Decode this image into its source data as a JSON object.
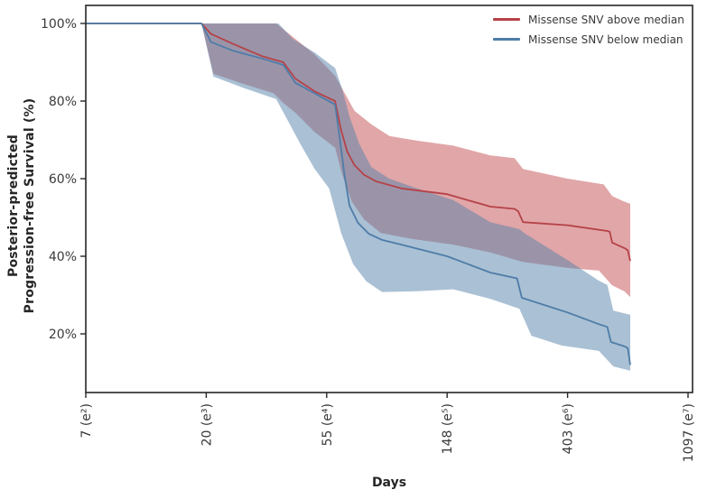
{
  "figure": {
    "y_axis_title_line1": "Posterior-predicted",
    "y_axis_title_line2": "Progression-free Survival (%)",
    "x_axis_title": "Days",
    "legend": [
      {
        "label": "Missense SNV above median",
        "color": "#b54248"
      },
      {
        "label": "Missense SNV below median",
        "color": "#4e7ca8"
      }
    ]
  },
  "chart_data": {
    "type": "line",
    "subtype": "survival-curves-with-credible-bands",
    "title": "",
    "xlabel": "Days",
    "ylabel": "Posterior-predicted Progression-free Survival (%)",
    "x_scale": "natural-log",
    "x_domain_ln": [
      2.0,
      7.04
    ],
    "y_domain_pct": [
      4.9,
      104.6
    ],
    "grid": "off",
    "legend_position": "upper right, no frame",
    "x_ticks": [
      {
        "ln": 2,
        "days": 7,
        "label": "7 (e²)"
      },
      {
        "ln": 3,
        "days": 20,
        "label": "20 (e³)"
      },
      {
        "ln": 4,
        "days": 55,
        "label": "55 (e⁴)"
      },
      {
        "ln": 5,
        "days": 148,
        "label": "148 (e⁵)"
      },
      {
        "ln": 6,
        "days": 403,
        "label": "403 (e⁶)"
      },
      {
        "ln": 7,
        "days": 1097,
        "label": "1097 (e⁷)"
      }
    ],
    "y_ticks": [
      {
        "value": 100,
        "label": "100%"
      },
      {
        "value": 80,
        "label": "80%"
      },
      {
        "value": 60,
        "label": "60%"
      },
      {
        "value": 40,
        "label": "40%"
      },
      {
        "value": 20,
        "label": "20%"
      }
    ],
    "series": [
      {
        "name": "Missense SNV above median",
        "line_color": "#b54248",
        "band_color": "#c44e52",
        "band_opacity": 0.5,
        "points_format": "[ln_days, survival_pct]",
        "line": [
          [
            2.0,
            100
          ],
          [
            2.96,
            100
          ],
          [
            3.04,
            97.3
          ],
          [
            3.22,
            94.8
          ],
          [
            3.46,
            91.6
          ],
          [
            3.64,
            90.0
          ],
          [
            3.74,
            85.8
          ],
          [
            3.9,
            82.5
          ],
          [
            4.07,
            80.0
          ],
          [
            4.12,
            72.5
          ],
          [
            4.17,
            67.0
          ],
          [
            4.23,
            63.5
          ],
          [
            4.31,
            61.0
          ],
          [
            4.41,
            59.3
          ],
          [
            4.62,
            57.5
          ],
          [
            5.0,
            56.0
          ],
          [
            5.36,
            52.8
          ],
          [
            5.56,
            52.2
          ],
          [
            5.59,
            51.6
          ],
          [
            5.63,
            48.8
          ],
          [
            6.0,
            48.0
          ],
          [
            6.33,
            46.5
          ],
          [
            6.35,
            46.3
          ],
          [
            6.37,
            43.5
          ],
          [
            6.48,
            42.0
          ],
          [
            6.5,
            41.5
          ],
          [
            6.52,
            38.8
          ]
        ],
        "band_upper": [
          [
            2.96,
            100
          ],
          [
            3.58,
            100
          ],
          [
            3.7,
            97.0
          ],
          [
            3.9,
            92.0
          ],
          [
            4.07,
            86.5
          ],
          [
            4.15,
            82.0
          ],
          [
            4.23,
            77.5
          ],
          [
            4.37,
            74.0
          ],
          [
            4.52,
            71.0
          ],
          [
            4.75,
            69.8
          ],
          [
            5.05,
            68.5
          ],
          [
            5.36,
            66.0
          ],
          [
            5.56,
            65.3
          ],
          [
            5.63,
            62.5
          ],
          [
            6.0,
            60.0
          ],
          [
            6.3,
            58.5
          ],
          [
            6.37,
            55.5
          ],
          [
            6.46,
            54.2
          ],
          [
            6.52,
            53.5
          ]
        ],
        "band_lower": [
          [
            2.96,
            100
          ],
          [
            3.06,
            87.0
          ],
          [
            3.3,
            84.5
          ],
          [
            3.56,
            82.0
          ],
          [
            3.64,
            79.5
          ],
          [
            3.74,
            77.0
          ],
          [
            3.9,
            72.0
          ],
          [
            4.07,
            68.0
          ],
          [
            4.13,
            61.0
          ],
          [
            4.21,
            54.0
          ],
          [
            4.31,
            49.5
          ],
          [
            4.45,
            46.0
          ],
          [
            4.7,
            44.5
          ],
          [
            5.05,
            43.0
          ],
          [
            5.36,
            41.0
          ],
          [
            5.63,
            38.5
          ],
          [
            6.0,
            37.0
          ],
          [
            6.26,
            36.3
          ],
          [
            6.37,
            32.5
          ],
          [
            6.47,
            31.0
          ],
          [
            6.52,
            29.5
          ]
        ]
      },
      {
        "name": "Missense SNV below median",
        "line_color": "#4e7ca8",
        "band_color": "#5581aa",
        "band_opacity": 0.5,
        "points_format": "[ln_days, survival_pct]",
        "line": [
          [
            2.0,
            100
          ],
          [
            2.96,
            100
          ],
          [
            3.04,
            95.2
          ],
          [
            3.22,
            93.0
          ],
          [
            3.46,
            91.0
          ],
          [
            3.64,
            89.3
          ],
          [
            3.74,
            84.7
          ],
          [
            3.9,
            82.0
          ],
          [
            4.07,
            79.1
          ],
          [
            4.11,
            70.0
          ],
          [
            4.15,
            60.5
          ],
          [
            4.19,
            53.0
          ],
          [
            4.26,
            48.6
          ],
          [
            4.35,
            45.8
          ],
          [
            4.46,
            44.2
          ],
          [
            4.62,
            43.0
          ],
          [
            5.0,
            40.0
          ],
          [
            5.36,
            35.8
          ],
          [
            5.58,
            34.3
          ],
          [
            5.62,
            29.3
          ],
          [
            6.0,
            25.5
          ],
          [
            6.26,
            22.5
          ],
          [
            6.33,
            21.8
          ],
          [
            6.36,
            17.9
          ],
          [
            6.48,
            16.7
          ],
          [
            6.5,
            16.3
          ],
          [
            6.52,
            12.0
          ]
        ],
        "band_upper": [
          [
            2.96,
            100
          ],
          [
            3.6,
            100
          ],
          [
            3.72,
            96.0
          ],
          [
            3.9,
            92.5
          ],
          [
            4.07,
            88.5
          ],
          [
            4.13,
            83.0
          ],
          [
            4.19,
            76.0
          ],
          [
            4.27,
            69.0
          ],
          [
            4.37,
            63.0
          ],
          [
            4.52,
            60.0
          ],
          [
            4.75,
            57.5
          ],
          [
            5.05,
            54.5
          ],
          [
            5.36,
            48.8
          ],
          [
            5.6,
            47.0
          ],
          [
            5.64,
            46.0
          ],
          [
            6.0,
            39.0
          ],
          [
            6.26,
            33.7
          ],
          [
            6.33,
            32.6
          ],
          [
            6.38,
            26.0
          ],
          [
            6.52,
            24.9
          ]
        ],
        "band_lower": [
          [
            2.96,
            100
          ],
          [
            3.06,
            86.3
          ],
          [
            3.3,
            83.5
          ],
          [
            3.58,
            80.5
          ],
          [
            3.66,
            76.0
          ],
          [
            3.78,
            69.0
          ],
          [
            3.9,
            62.5
          ],
          [
            4.02,
            57.5
          ],
          [
            4.12,
            46.0
          ],
          [
            4.22,
            38.0
          ],
          [
            4.33,
            33.5
          ],
          [
            4.46,
            30.8
          ],
          [
            4.75,
            31.0
          ],
          [
            5.05,
            31.5
          ],
          [
            5.36,
            29.0
          ],
          [
            5.6,
            26.5
          ],
          [
            5.7,
            19.5
          ],
          [
            5.95,
            17.0
          ],
          [
            6.26,
            15.6
          ],
          [
            6.38,
            11.6
          ],
          [
            6.52,
            10.5
          ]
        ]
      }
    ]
  }
}
